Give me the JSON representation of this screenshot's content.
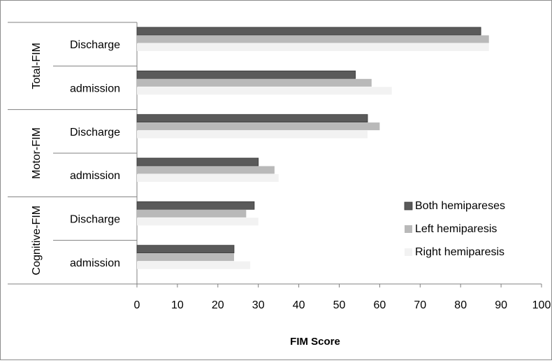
{
  "chart_data": {
    "type": "bar",
    "orientation": "horizontal",
    "xlabel": "FIM Score",
    "xlim": [
      0,
      100
    ],
    "xticks": [
      0,
      10,
      20,
      30,
      40,
      50,
      60,
      70,
      80,
      90,
      100
    ],
    "groups": [
      {
        "label": "Total-FIM",
        "rows": [
          {
            "label": "Discharge",
            "values": [
              85,
              87,
              87
            ]
          },
          {
            "label": "admission",
            "values": [
              54,
              58,
              63
            ]
          }
        ]
      },
      {
        "label": "Motor-FIM",
        "rows": [
          {
            "label": "Discharge",
            "values": [
              57,
              60,
              57
            ]
          },
          {
            "label": "admission",
            "values": [
              30,
              34,
              35
            ]
          }
        ]
      },
      {
        "label": "Cognitive-FIM",
        "rows": [
          {
            "label": "Discharge",
            "values": [
              29,
              27,
              30
            ]
          },
          {
            "label": "admission",
            "values": [
              24,
              24,
              28
            ]
          }
        ]
      }
    ],
    "series": [
      {
        "name": "Both hemipareses",
        "color": "#5a5a5a"
      },
      {
        "name": "Left hemiparesis",
        "color": "#b9b9b9"
      },
      {
        "name": "Right hemiparesis",
        "color": "#f2f2f2"
      }
    ],
    "legend_position": "right",
    "grid": false
  }
}
